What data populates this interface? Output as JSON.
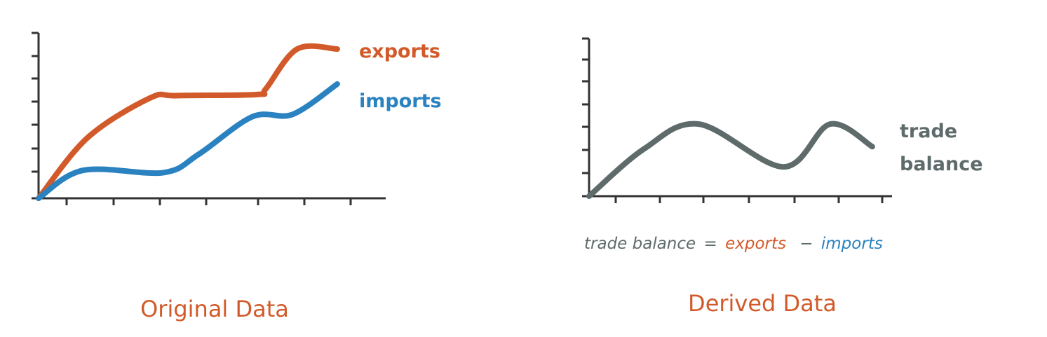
{
  "colors": {
    "exports": "#d25a2a",
    "imports": "#2a82c0",
    "balance": "#5f6b6b",
    "axis": "#333333",
    "caption": "#d25a2a",
    "formula_text": "#5f6b6b"
  },
  "chart_data": [
    {
      "type": "line",
      "title": "",
      "xlabel": "",
      "ylabel": "",
      "caption": "Original Data",
      "x": [
        0,
        1,
        2,
        3,
        4,
        5,
        6,
        7
      ],
      "ylim": [
        0,
        7
      ],
      "xlim": [
        0,
        7
      ],
      "y_tick_count": 7,
      "x_tick_count": 7,
      "grid": false,
      "series": [
        {
          "name": "exports",
          "color": "#d25a2a",
          "x": [
            0,
            1.1,
            2.5,
            3.1,
            4.9,
            5.1,
            5.8,
            6.7
          ],
          "values": [
            0,
            2.6,
            4.3,
            4.4,
            4.45,
            4.7,
            6.4,
            6.4
          ]
        },
        {
          "name": "imports",
          "color": "#2a82c0",
          "x": [
            0,
            1.0,
            2.8,
            3.6,
            4.8,
            5.7,
            6.7
          ],
          "values": [
            0,
            1.2,
            1.1,
            1.9,
            3.5,
            3.6,
            4.9
          ]
        }
      ]
    },
    {
      "type": "line",
      "title": "",
      "xlabel": "",
      "ylabel": "",
      "caption": "Derived Data",
      "formula": {
        "lhs": "trade balance",
        "eq": "=",
        "a": "exports",
        "op": "−",
        "b": "imports"
      },
      "x": [
        0,
        1,
        2,
        3,
        4,
        5,
        6,
        7
      ],
      "ylim": [
        0,
        7
      ],
      "xlim": [
        0,
        7
      ],
      "y_tick_count": 7,
      "x_tick_count": 7,
      "grid": false,
      "series": [
        {
          "name": "trade balance",
          "label_lines": [
            "trade",
            "balance"
          ],
          "color": "#5f6b6b",
          "x": [
            0,
            1.3,
            2.6,
            4.6,
            5.7,
            6.7
          ],
          "values": [
            0,
            2.1,
            3.2,
            1.3,
            3.2,
            2.2
          ]
        }
      ]
    }
  ]
}
